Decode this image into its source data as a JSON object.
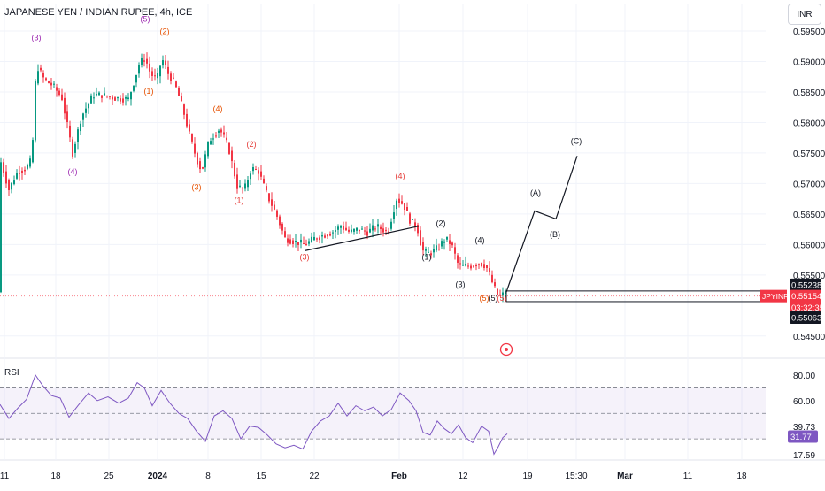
{
  "header": {
    "title": "JAPANESE YEN / INDIAN RUPEE, 4h, ICE",
    "currency": "INR"
  },
  "rsi": {
    "label": "RSI",
    "axis_ticks": [
      "80.00",
      "60.00",
      "39.73",
      "17.59"
    ],
    "current": "31.77"
  },
  "chart_data": {
    "type": "candlestick",
    "symbol": "JPYINR",
    "interval": "4h",
    "price_axis": {
      "ticks": [
        0.595,
        0.59,
        0.585,
        0.58,
        0.575,
        0.57,
        0.565,
        0.56,
        0.555,
        0.545
      ],
      "tick_labels": [
        "0.59500",
        "0.59000",
        "0.58500",
        "0.58000",
        "0.57500",
        "0.57000",
        "0.56500",
        "0.56000",
        "0.55500",
        "0.54500"
      ],
      "range": [
        0.5425,
        0.5995
      ]
    },
    "time_axis": {
      "labels": [
        "11",
        "18",
        "25",
        "2024",
        "8",
        "15",
        "22",
        "Feb",
        "12",
        "19",
        "15:30",
        "Mar",
        "11",
        "18"
      ]
    },
    "price_tags": {
      "zone_top": "0.55238",
      "current_symbol": "JPYINR",
      "current_price": "0.55154",
      "countdown": "03:32:35",
      "zone_bottom": "0.55063"
    },
    "price_path": [
      [
        0,
        0.574
      ],
      [
        10,
        0.569
      ],
      [
        20,
        0.572
      ],
      [
        30,
        0.5725
      ],
      [
        36,
        0.574
      ],
      [
        41,
        0.5895
      ],
      [
        50,
        0.587
      ],
      [
        60,
        0.586
      ],
      [
        70,
        0.584
      ],
      [
        82,
        0.575
      ],
      [
        92,
        0.581
      ],
      [
        105,
        0.5845
      ],
      [
        115,
        0.5845
      ],
      [
        130,
        0.584
      ],
      [
        145,
        0.5838
      ],
      [
        152,
        0.587
      ],
      [
        158,
        0.59
      ],
      [
        164,
        0.5905
      ],
      [
        170,
        0.588
      ],
      [
        177,
        0.587
      ],
      [
        183,
        0.5905
      ],
      [
        190,
        0.588
      ],
      [
        197,
        0.5865
      ],
      [
        206,
        0.5825
      ],
      [
        215,
        0.5775
      ],
      [
        222,
        0.574
      ],
      [
        228,
        0.572
      ],
      [
        236,
        0.577
      ],
      [
        248,
        0.579
      ],
      [
        258,
        0.576
      ],
      [
        268,
        0.5695
      ],
      [
        276,
        0.569
      ],
      [
        284,
        0.5725
      ],
      [
        292,
        0.572
      ],
      [
        302,
        0.568
      ],
      [
        312,
        0.565
      ],
      [
        322,
        0.561
      ],
      [
        332,
        0.5605
      ],
      [
        345,
        0.56
      ],
      [
        355,
        0.561
      ],
      [
        365,
        0.5615
      ],
      [
        375,
        0.562
      ],
      [
        385,
        0.563
      ],
      [
        395,
        0.562
      ],
      [
        405,
        0.5625
      ],
      [
        415,
        0.562
      ],
      [
        425,
        0.563
      ],
      [
        438,
        0.562
      ],
      [
        448,
        0.5675
      ],
      [
        456,
        0.5665
      ],
      [
        463,
        0.564
      ],
      [
        471,
        0.563
      ],
      [
        477,
        0.559
      ],
      [
        485,
        0.5585
      ],
      [
        495,
        0.5595
      ],
      [
        503,
        0.561
      ],
      [
        510,
        0.56
      ],
      [
        518,
        0.5565
      ],
      [
        525,
        0.5565
      ],
      [
        533,
        0.5565
      ],
      [
        541,
        0.557
      ],
      [
        549,
        0.5565
      ],
      [
        553,
        0.555
      ],
      [
        558,
        0.553
      ],
      [
        563,
        0.5515
      ],
      [
        568,
        0.5518
      ],
      [
        572,
        0.5522
      ]
    ],
    "wave_labels": [
      {
        "text": "(3)",
        "color": "#9c27b0",
        "x": 41,
        "p": 0.5935
      },
      {
        "text": "(4)",
        "color": "#9c27b0",
        "x": 82,
        "p": 0.5715
      },
      {
        "text": "(5)",
        "color": "#9c27b0",
        "x": 164,
        "p": 0.5965
      },
      {
        "text": "(2)",
        "color": "#e65100",
        "x": 186,
        "p": 0.5945
      },
      {
        "text": "(1)",
        "color": "#e65100",
        "x": 168,
        "p": 0.5847
      },
      {
        "text": "(4)",
        "color": "#e65100",
        "x": 246,
        "p": 0.5818
      },
      {
        "text": "(3)",
        "color": "#e65100",
        "x": 222,
        "p": 0.569
      },
      {
        "text": "(2)",
        "color": "#e53935",
        "x": 284,
        "p": 0.576
      },
      {
        "text": "(1)",
        "color": "#e53935",
        "x": 270,
        "p": 0.5668
      },
      {
        "text": "(3)",
        "color": "#e53935",
        "x": 344,
        "p": 0.5575
      },
      {
        "text": "(4)",
        "color": "#e53935",
        "x": 452,
        "p": 0.5708
      },
      {
        "text": "(5)",
        "color": "#e65100",
        "x": 547,
        "p": 0.5508
      },
      {
        "text": "(2)",
        "color": "#131722",
        "x": 498,
        "p": 0.563
      },
      {
        "text": "(1)",
        "color": "#131722",
        "x": 482,
        "p": 0.5575
      },
      {
        "text": "(4)",
        "color": "#131722",
        "x": 542,
        "p": 0.5603
      },
      {
        "text": "(3)",
        "color": "#131722",
        "x": 520,
        "p": 0.553
      },
      {
        "text": "(5)",
        "color": "#131722",
        "x": 557,
        "p": 0.5508
      },
      {
        "text": "(5)",
        "color": "#e53935",
        "x": 567,
        "p": 0.5508
      },
      {
        "text": "(A)",
        "color": "#131722",
        "x": 605,
        "p": 0.568
      },
      {
        "text": "(B)",
        "color": "#131722",
        "x": 627,
        "p": 0.5612
      },
      {
        "text": "(C)",
        "color": "#131722",
        "x": 651,
        "p": 0.5765
      }
    ],
    "projection_path": [
      [
        572,
        0.5522
      ],
      [
        604,
        0.5655
      ],
      [
        628,
        0.5642
      ],
      [
        652,
        0.5745
      ]
    ],
    "trendline": [
      [
        345,
        0.559
      ],
      [
        473,
        0.563
      ]
    ],
    "rsi_series": [
      [
        0,
        57
      ],
      [
        10,
        46
      ],
      [
        20,
        54
      ],
      [
        30,
        61
      ],
      [
        40,
        80
      ],
      [
        48,
        72
      ],
      [
        58,
        64
      ],
      [
        68,
        62
      ],
      [
        78,
        47
      ],
      [
        88,
        56
      ],
      [
        100,
        66
      ],
      [
        110,
        60
      ],
      [
        122,
        63
      ],
      [
        134,
        58
      ],
      [
        145,
        62
      ],
      [
        155,
        74
      ],
      [
        163,
        70
      ],
      [
        172,
        56
      ],
      [
        182,
        68
      ],
      [
        192,
        58
      ],
      [
        202,
        50
      ],
      [
        212,
        46
      ],
      [
        222,
        36
      ],
      [
        232,
        28
      ],
      [
        242,
        48
      ],
      [
        252,
        52
      ],
      [
        262,
        46
      ],
      [
        272,
        30
      ],
      [
        282,
        40
      ],
      [
        292,
        39
      ],
      [
        302,
        33
      ],
      [
        312,
        26
      ],
      [
        322,
        23
      ],
      [
        332,
        25
      ],
      [
        342,
        22
      ],
      [
        352,
        36
      ],
      [
        362,
        44
      ],
      [
        372,
        48
      ],
      [
        382,
        58
      ],
      [
        392,
        48
      ],
      [
        402,
        56
      ],
      [
        412,
        52
      ],
      [
        422,
        55
      ],
      [
        432,
        48
      ],
      [
        442,
        53
      ],
      [
        452,
        66
      ],
      [
        462,
        60
      ],
      [
        470,
        52
      ],
      [
        478,
        35
      ],
      [
        486,
        33
      ],
      [
        494,
        44
      ],
      [
        502,
        38
      ],
      [
        510,
        34
      ],
      [
        518,
        41
      ],
      [
        526,
        31
      ],
      [
        534,
        27
      ],
      [
        544,
        40
      ],
      [
        552,
        36
      ],
      [
        558,
        18
      ],
      [
        563,
        24
      ],
      [
        568,
        31
      ],
      [
        573,
        34
      ]
    ]
  }
}
